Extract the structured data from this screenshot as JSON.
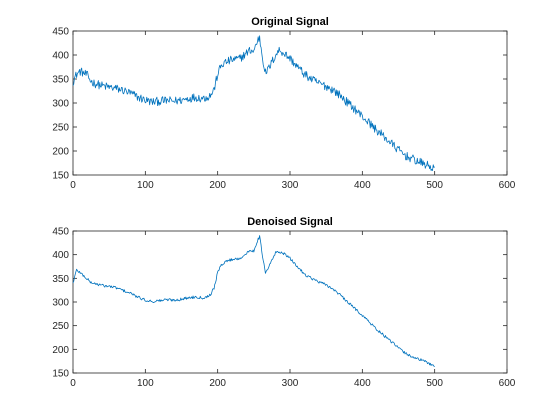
{
  "chart_data": [
    {
      "type": "line",
      "title": "Original Signal",
      "xlabel": "",
      "ylabel": "",
      "xlim": [
        0,
        600
      ],
      "ylim": [
        150,
        450
      ],
      "xticks": [
        "0",
        "100",
        "200",
        "300",
        "400",
        "500",
        "600"
      ],
      "yticks": [
        "150",
        "200",
        "250",
        "300",
        "350",
        "400",
        "450"
      ],
      "grid": false,
      "line_color": "#0072BD",
      "noise": "high",
      "series": [
        {
          "x": [
            0,
            5,
            10,
            15,
            20,
            25,
            30,
            40,
            50,
            60,
            70,
            80,
            90,
            100,
            110,
            120,
            130,
            140,
            150,
            160,
            170,
            180,
            185,
            190,
            195,
            200,
            205,
            210,
            220,
            230,
            240,
            245,
            250,
            255,
            258,
            262,
            266,
            270,
            275,
            280,
            285,
            290,
            300,
            310,
            320,
            330,
            340,
            350,
            360,
            370,
            380,
            390,
            400,
            410,
            420,
            430,
            440,
            450,
            460,
            470,
            480,
            490,
            495,
            500
          ],
          "y": [
            345,
            360,
            366,
            362,
            357,
            345,
            341,
            336,
            333,
            330,
            326,
            320,
            312,
            306,
            302,
            304,
            305,
            304,
            306,
            310,
            312,
            310,
            312,
            316,
            328,
            360,
            378,
            384,
            390,
            392,
            404,
            410,
            408,
            430,
            436,
            395,
            363,
            370,
            385,
            400,
            410,
            406,
            393,
            376,
            360,
            349,
            341,
            335,
            327,
            315,
            300,
            287,
            272,
            258,
            243,
            230,
            216,
            202,
            190,
            183,
            176,
            170,
            166,
            164
          ]
        }
      ]
    },
    {
      "type": "line",
      "title": "Denoised Signal",
      "xlabel": "",
      "ylabel": "",
      "xlim": [
        0,
        600
      ],
      "ylim": [
        150,
        450
      ],
      "xticks": [
        "0",
        "100",
        "200",
        "300",
        "400",
        "500",
        "600"
      ],
      "yticks": [
        "150",
        "200",
        "250",
        "300",
        "350",
        "400",
        "450"
      ],
      "grid": false,
      "line_color": "#0072BD",
      "noise": "low",
      "series": [
        {
          "x": [
            0,
            5,
            10,
            15,
            20,
            25,
            30,
            40,
            50,
            60,
            70,
            80,
            90,
            100,
            110,
            120,
            130,
            140,
            150,
            160,
            170,
            180,
            185,
            190,
            195,
            200,
            205,
            210,
            220,
            230,
            240,
            245,
            250,
            255,
            258,
            262,
            266,
            270,
            275,
            280,
            285,
            290,
            300,
            310,
            320,
            330,
            340,
            350,
            360,
            370,
            380,
            390,
            400,
            410,
            420,
            430,
            440,
            450,
            460,
            470,
            480,
            490,
            495,
            500
          ],
          "y": [
            340,
            368,
            362,
            355,
            348,
            341,
            339,
            335,
            333,
            330,
            324,
            318,
            310,
            304,
            301,
            303,
            305,
            304,
            306,
            309,
            311,
            309,
            311,
            316,
            330,
            362,
            378,
            385,
            390,
            392,
            402,
            409,
            408,
            430,
            438,
            398,
            360,
            372,
            388,
            404,
            406,
            404,
            392,
            375,
            359,
            350,
            342,
            336,
            327,
            314,
            299,
            286,
            272,
            257,
            242,
            229,
            216,
            203,
            191,
            184,
            178,
            172,
            168,
            166
          ]
        }
      ]
    }
  ]
}
